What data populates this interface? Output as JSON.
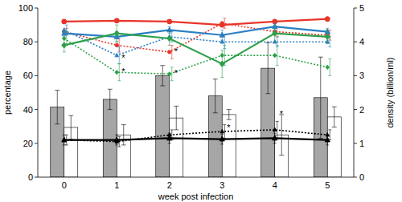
{
  "chart_data": {
    "type": "bar",
    "categories": [
      "0",
      "1",
      "2",
      "3",
      "4",
      "5"
    ],
    "x_label": "week post infection",
    "y_label": "percentage",
    "y2_label": "density (billion/ml)",
    "ylim": [
      0,
      100
    ],
    "yticks": [
      0,
      20,
      40,
      60,
      80,
      100
    ],
    "y2lim": [
      0,
      5
    ],
    "y2ticks": [
      0,
      1,
      2,
      3,
      4,
      5
    ],
    "series": [
      {
        "type": "bar",
        "axis": "y2",
        "color": "#a6a6a6",
        "values": [
          2.07,
          2.3,
          3.0,
          2.4,
          3.22,
          2.35
        ],
        "errors": [
          0.5,
          0.3,
          0.3,
          0.5,
          0.75,
          1.2
        ]
      },
      {
        "type": "bar",
        "axis": "y2",
        "color": "#ffffff",
        "values": [
          1.47,
          1.25,
          1.75,
          1.85,
          1.25,
          1.78
        ],
        "errors": [
          0.35,
          0.3,
          0.35,
          0.15,
          0.6,
          0.3
        ]
      },
      {
        "type": "line",
        "color": "#e8352a",
        "marker": "circle",
        "line_style": "solid",
        "values": [
          92,
          92.5,
          92,
          90,
          92,
          93.5
        ],
        "errors": [
          1,
          1,
          1,
          1,
          1,
          1
        ]
      },
      {
        "type": "line",
        "color": "#e8352a",
        "marker": "circle",
        "line_style": "dotted",
        "values": [
          86,
          78,
          74,
          91,
          86,
          84
        ],
        "errors": [
          2,
          4,
          4,
          3,
          3,
          3
        ]
      },
      {
        "type": "line",
        "color": "#2a7fc4",
        "marker": "triangle",
        "line_style": "solid",
        "values": [
          85,
          83,
          87,
          84,
          89,
          86
        ],
        "errors": [
          2,
          3,
          2,
          3,
          2,
          2
        ]
      },
      {
        "type": "line",
        "color": "#2a7fc4",
        "marker": "triangle",
        "line_style": "dotted",
        "values": [
          87,
          72,
          83,
          80,
          80,
          80
        ],
        "errors": [
          3,
          5,
          3,
          4,
          3,
          3
        ]
      },
      {
        "type": "line",
        "color": "#2ea04a",
        "marker": "diamond",
        "line_style": "solid",
        "values": [
          78,
          85,
          82,
          67,
          85,
          83
        ],
        "errors": [
          4,
          5,
          4,
          8,
          5,
          4
        ]
      },
      {
        "type": "line",
        "color": "#2ea04a",
        "marker": "diamond",
        "line_style": "dotted",
        "values": [
          82,
          62,
          61,
          72,
          72,
          65
        ],
        "errors": [
          4,
          5,
          4,
          6,
          6,
          5
        ]
      },
      {
        "type": "line",
        "color": "#000000",
        "marker": "triangle",
        "line_style": "solid",
        "values": [
          22,
          22,
          23,
          22.5,
          23,
          22
        ],
        "errors": [
          3,
          3,
          3,
          3,
          3,
          3
        ]
      },
      {
        "type": "line",
        "color": "#000000",
        "marker": "triangle",
        "line_style": "dotted",
        "values": [
          22,
          21,
          25,
          27,
          28,
          25
        ],
        "errors": [
          3,
          3,
          3,
          4,
          5,
          3
        ]
      }
    ],
    "annotations": [
      {
        "text": "*",
        "x": 1,
        "y": 71
      },
      {
        "text": "*",
        "x": 1,
        "y": 63
      },
      {
        "text": "*",
        "x": 2,
        "y": 75
      },
      {
        "text": "*",
        "x": 2,
        "y": 62
      },
      {
        "text": "*",
        "x": 3,
        "y": 30
      },
      {
        "text": "*",
        "x": 4,
        "y": 38
      }
    ]
  }
}
